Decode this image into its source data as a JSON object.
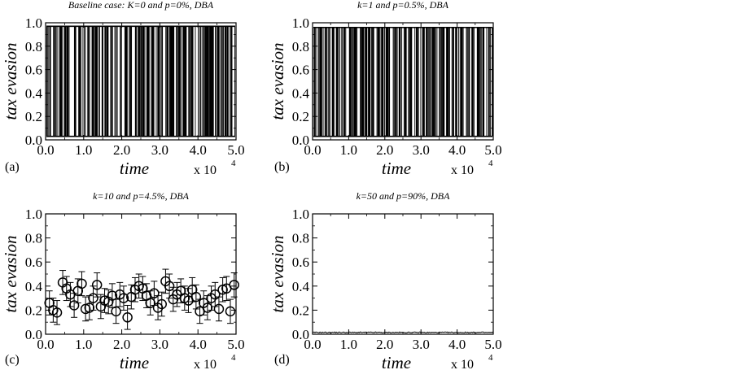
{
  "figure": {
    "colors": {
      "ink": "#000000",
      "background": "#ffffff"
    }
  },
  "chart_data": [
    {
      "panel": "(a)",
      "type": "line",
      "title": "Baseline case: K=0 and p=0%, DBA",
      "xlabel": "time",
      "ylabel": "tax evasion",
      "x_scale_label": "x 10",
      "x_scale_exponent": "4",
      "xlim": [
        0.0,
        5.0
      ],
      "ylim": [
        0.0,
        1.0
      ],
      "xticks": [
        "0.0",
        "1.0",
        "2.0",
        "3.0",
        "4.0",
        "5.0"
      ],
      "yticks": [
        "0.0",
        "0.2",
        "0.4",
        "0.6",
        "0.8",
        "1.0"
      ],
      "grid": false,
      "series_style": "dense-switching",
      "low_level": 0.03,
      "high_level": 0.97,
      "bins": 100,
      "bin_fraction_high": [
        0.6,
        0.3,
        0.9,
        0.1,
        0.4,
        0.8,
        0.2,
        0.7,
        0.5,
        0.3,
        0.6,
        0.9,
        0.2,
        0.5,
        0.4,
        0.8,
        0.1,
        0.6,
        0.7,
        0.3,
        0.5,
        0.2,
        0.9,
        0.4,
        0.6,
        0.3,
        0.8,
        0.5,
        0.1,
        0.7,
        0.4,
        0.6,
        0.9,
        0.2,
        0.5,
        0.3,
        0.8,
        0.6,
        0.4,
        0.7,
        0.2,
        0.5,
        0.9,
        0.3,
        0.6,
        0.4,
        0.1,
        0.8,
        0.5,
        0.7,
        0.3,
        0.6,
        0.2,
        0.9,
        0.4,
        0.5,
        0.7,
        0.1,
        0.6,
        0.8,
        0.3,
        0.5,
        0.2,
        0.7,
        0.4,
        0.9,
        0.6,
        0.3,
        0.5,
        0.8,
        0.2,
        0.4,
        0.7,
        0.6,
        0.1,
        0.5,
        0.9,
        0.3,
        0.6,
        0.4,
        0.8,
        0.2,
        0.5,
        0.7,
        0.3,
        0.6,
        0.9,
        0.4,
        0.1,
        0.5,
        0.8,
        0.3,
        0.6,
        0.2,
        0.7,
        0.5,
        0.4,
        0.9,
        0.3,
        0.6
      ]
    },
    {
      "panel": "(b)",
      "type": "line",
      "title": "k=1 and p=0.5%, DBA",
      "xlabel": "time",
      "ylabel": "tax evasion",
      "x_scale_label": "x 10",
      "x_scale_exponent": "4",
      "xlim": [
        0.0,
        5.0
      ],
      "ylim": [
        0.0,
        1.0
      ],
      "xticks": [
        "0.0",
        "1.0",
        "2.0",
        "3.0",
        "4.0",
        "5.0"
      ],
      "yticks": [
        "0.0",
        "0.2",
        "0.4",
        "0.6",
        "0.8",
        "1.0"
      ],
      "grid": false,
      "series_style": "dense-switching",
      "low_level": 0.03,
      "high_level": 0.96,
      "bins": 100,
      "bin_fraction_high": [
        0.4,
        0.7,
        0.2,
        0.6,
        0.9,
        0.3,
        0.5,
        0.8,
        0.1,
        0.6,
        0.4,
        0.7,
        0.3,
        0.9,
        0.5,
        0.2,
        0.6,
        0.8,
        0.4,
        0.1,
        0.7,
        0.5,
        0.3,
        0.9,
        0.6,
        0.2,
        0.4,
        0.8,
        0.5,
        0.7,
        0.1,
        0.6,
        0.3,
        0.9,
        0.4,
        0.5,
        0.8,
        0.2,
        0.7,
        0.6,
        0.3,
        0.9,
        0.5,
        0.1,
        0.4,
        0.7,
        0.6,
        0.2,
        0.8,
        0.5,
        0.3,
        0.9,
        0.4,
        0.6,
        0.7,
        0.2,
        0.5,
        0.8,
        0.1,
        0.6,
        0.4,
        0.9,
        0.3,
        0.7,
        0.5,
        0.2,
        0.6,
        0.8,
        0.4,
        0.1,
        0.7,
        0.5,
        0.9,
        0.3,
        0.6,
        0.4,
        0.2,
        0.8,
        0.5,
        0.7,
        0.3,
        0.6,
        0.9,
        0.1,
        0.4,
        0.8,
        0.5,
        0.2,
        0.7,
        0.6,
        0.3,
        0.9,
        0.4,
        0.5,
        0.8,
        0.2,
        0.6,
        0.7,
        0.1,
        0.5
      ]
    },
    {
      "panel": "(c)",
      "type": "scatter",
      "title": "k=10 and p=4.5%, DBA",
      "xlabel": "time",
      "ylabel": "tax evasion",
      "x_scale_label": "x 10",
      "x_scale_exponent": "4",
      "xlim": [
        0.0,
        5.0
      ],
      "ylim": [
        0.0,
        1.0
      ],
      "xticks": [
        "0.0",
        "1.0",
        "2.0",
        "3.0",
        "4.0",
        "5.0"
      ],
      "yticks": [
        "0.0",
        "0.2",
        "0.4",
        "0.6",
        "0.8",
        "1.0"
      ],
      "grid": false,
      "marker": "open-circle",
      "error_bar": 0.1,
      "points": [
        {
          "x": 0.1,
          "y": 0.26
        },
        {
          "x": 0.2,
          "y": 0.2
        },
        {
          "x": 0.3,
          "y": 0.18
        },
        {
          "x": 0.45,
          "y": 0.43
        },
        {
          "x": 0.55,
          "y": 0.38
        },
        {
          "x": 0.65,
          "y": 0.33
        },
        {
          "x": 0.75,
          "y": 0.24
        },
        {
          "x": 0.85,
          "y": 0.36
        },
        {
          "x": 0.95,
          "y": 0.42
        },
        {
          "x": 1.05,
          "y": 0.21
        },
        {
          "x": 1.15,
          "y": 0.22
        },
        {
          "x": 1.25,
          "y": 0.3
        },
        {
          "x": 1.35,
          "y": 0.41
        },
        {
          "x": 1.45,
          "y": 0.23
        },
        {
          "x": 1.55,
          "y": 0.28
        },
        {
          "x": 1.65,
          "y": 0.27
        },
        {
          "x": 1.75,
          "y": 0.32
        },
        {
          "x": 1.85,
          "y": 0.19
        },
        {
          "x": 1.95,
          "y": 0.33
        },
        {
          "x": 2.05,
          "y": 0.3
        },
        {
          "x": 2.15,
          "y": 0.14
        },
        {
          "x": 2.25,
          "y": 0.31
        },
        {
          "x": 2.35,
          "y": 0.37
        },
        {
          "x": 2.45,
          "y": 0.4
        },
        {
          "x": 2.55,
          "y": 0.38
        },
        {
          "x": 2.65,
          "y": 0.32
        },
        {
          "x": 2.75,
          "y": 0.26
        },
        {
          "x": 2.85,
          "y": 0.34
        },
        {
          "x": 2.95,
          "y": 0.22
        },
        {
          "x": 3.05,
          "y": 0.25
        },
        {
          "x": 3.15,
          "y": 0.44
        },
        {
          "x": 3.25,
          "y": 0.4
        },
        {
          "x": 3.35,
          "y": 0.29
        },
        {
          "x": 3.45,
          "y": 0.33
        },
        {
          "x": 3.55,
          "y": 0.36
        },
        {
          "x": 3.65,
          "y": 0.3
        },
        {
          "x": 3.75,
          "y": 0.28
        },
        {
          "x": 3.85,
          "y": 0.37
        },
        {
          "x": 3.95,
          "y": 0.31
        },
        {
          "x": 4.05,
          "y": 0.19
        },
        {
          "x": 4.15,
          "y": 0.26
        },
        {
          "x": 4.25,
          "y": 0.22
        },
        {
          "x": 4.35,
          "y": 0.3
        },
        {
          "x": 4.45,
          "y": 0.33
        },
        {
          "x": 4.55,
          "y": 0.21
        },
        {
          "x": 4.65,
          "y": 0.37
        },
        {
          "x": 4.75,
          "y": 0.38
        },
        {
          "x": 4.85,
          "y": 0.19
        },
        {
          "x": 4.95,
          "y": 0.41
        }
      ]
    },
    {
      "panel": "(d)",
      "type": "line",
      "title": "k=50 and p=90%, DBA",
      "xlabel": "time",
      "ylabel": "tax evasion",
      "x_scale_label": "x 10",
      "x_scale_exponent": "4",
      "xlim": [
        0.0,
        5.0
      ],
      "ylim": [
        0.0,
        1.0
      ],
      "xticks": [
        "0.0",
        "1.0",
        "2.0",
        "3.0",
        "4.0",
        "5.0"
      ],
      "yticks": [
        "0.0",
        "0.2",
        "0.4",
        "0.6",
        "0.8",
        "1.0"
      ],
      "grid": false,
      "series_style": "flat-noise",
      "level": 0.015,
      "noise": 0.008
    }
  ]
}
